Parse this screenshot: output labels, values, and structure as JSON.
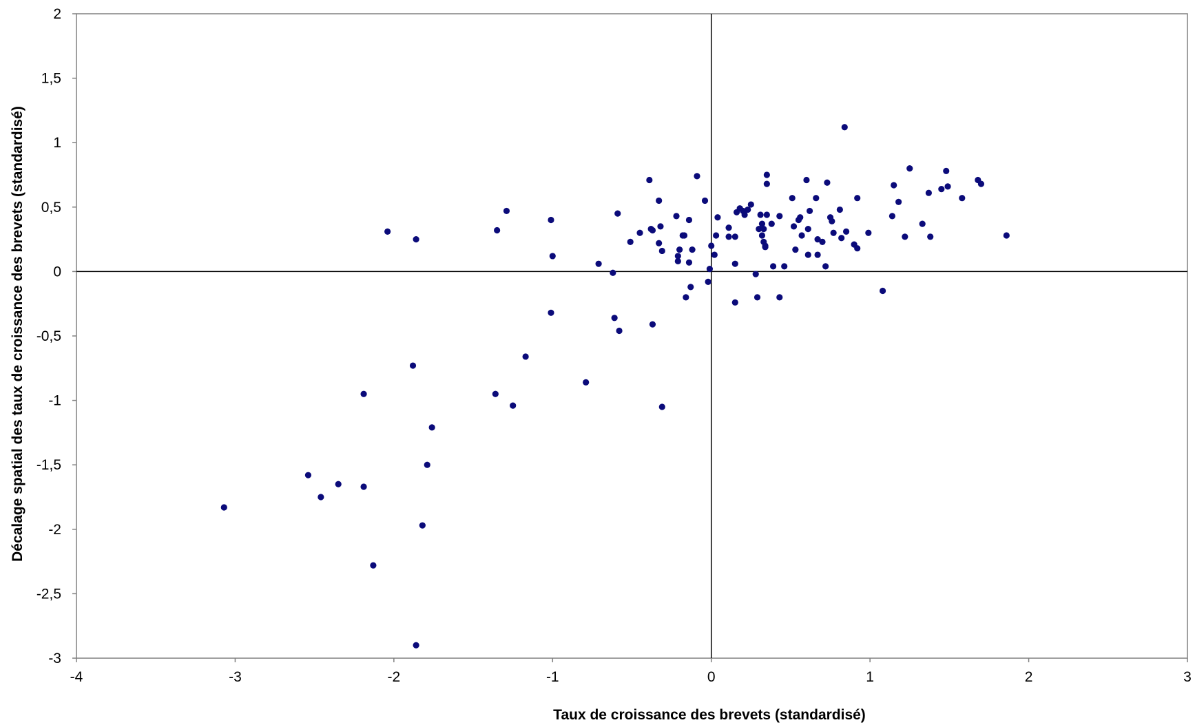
{
  "chart_data": {
    "type": "scatter",
    "title": "",
    "xlabel": "Taux de croissance  des brevets  (standardisé)",
    "ylabel": "Décalage spatial des taux de croissance  des brevets  (standardisé)",
    "xlim": [
      -4,
      3
    ],
    "ylim": [
      -3,
      2
    ],
    "xticks": [
      -4,
      -3,
      -2,
      -1,
      0,
      1,
      2,
      3
    ],
    "xtick_labels": [
      "-4",
      "-3",
      "-2",
      "-1",
      "0",
      "1",
      "2",
      "3"
    ],
    "yticks": [
      2,
      1.5,
      1,
      0.5,
      0,
      -0.5,
      -1,
      -1.5,
      -2,
      -2.5,
      -3
    ],
    "ytick_labels": [
      "2",
      "1,5",
      "1",
      "0,5",
      "0",
      "-0,5",
      "-1",
      "-1,5",
      "-2",
      "-2,5",
      "-3"
    ],
    "grid": false,
    "reference_lines": {
      "x": 0,
      "y": 0
    },
    "colors": {
      "points": "#0b0b7a",
      "axes": "#000000"
    },
    "points": [
      [
        -3.07,
        -1.83
      ],
      [
        -2.54,
        -1.58
      ],
      [
        -2.46,
        -1.75
      ],
      [
        -2.35,
        -1.65
      ],
      [
        -2.19,
        -0.95
      ],
      [
        -2.19,
        -1.67
      ],
      [
        -2.13,
        -2.28
      ],
      [
        -2.04,
        0.31
      ],
      [
        -1.88,
        -0.73
      ],
      [
        -1.86,
        0.25
      ],
      [
        -1.86,
        -2.9
      ],
      [
        -1.82,
        -1.97
      ],
      [
        -1.79,
        -1.5
      ],
      [
        -1.76,
        -1.21
      ],
      [
        -1.35,
        0.32
      ],
      [
        -1.36,
        -0.95
      ],
      [
        -1.29,
        0.47
      ],
      [
        -1.25,
        -1.04
      ],
      [
        -1.17,
        -0.66
      ],
      [
        -1.01,
        0.4
      ],
      [
        -1.01,
        -0.32
      ],
      [
        -1.0,
        0.12
      ],
      [
        -0.79,
        -0.86
      ],
      [
        -0.71,
        0.06
      ],
      [
        -0.62,
        -0.01
      ],
      [
        -0.61,
        -0.36
      ],
      [
        -0.59,
        0.45
      ],
      [
        -0.58,
        -0.46
      ],
      [
        -0.51,
        0.23
      ],
      [
        -0.45,
        0.3
      ],
      [
        -0.39,
        0.71
      ],
      [
        -0.38,
        0.33
      ],
      [
        -0.37,
        0.32
      ],
      [
        -0.37,
        -0.41
      ],
      [
        -0.33,
        0.55
      ],
      [
        -0.33,
        0.22
      ],
      [
        -0.32,
        0.35
      ],
      [
        -0.31,
        0.16
      ],
      [
        -0.31,
        -1.05
      ],
      [
        -0.22,
        0.43
      ],
      [
        -0.21,
        0.12
      ],
      [
        -0.21,
        0.08
      ],
      [
        -0.2,
        0.17
      ],
      [
        -0.18,
        0.28
      ],
      [
        -0.17,
        0.28
      ],
      [
        -0.16,
        -0.2
      ],
      [
        -0.14,
        0.07
      ],
      [
        -0.14,
        0.4
      ],
      [
        -0.13,
        -0.12
      ],
      [
        -0.12,
        0.17
      ],
      [
        -0.09,
        0.74
      ],
      [
        -0.04,
        0.55
      ],
      [
        -0.02,
        -0.08
      ],
      [
        -0.01,
        0.02
      ],
      [
        0.0,
        0.2
      ],
      [
        0.02,
        0.13
      ],
      [
        0.03,
        0.28
      ],
      [
        0.04,
        0.42
      ],
      [
        0.11,
        0.34
      ],
      [
        0.11,
        0.27
      ],
      [
        0.15,
        0.27
      ],
      [
        0.15,
        0.06
      ],
      [
        0.15,
        -0.24
      ],
      [
        0.16,
        0.46
      ],
      [
        0.18,
        0.49
      ],
      [
        0.2,
        0.47
      ],
      [
        0.21,
        0.44
      ],
      [
        0.23,
        0.48
      ],
      [
        0.25,
        0.52
      ],
      [
        0.28,
        -0.02
      ],
      [
        0.29,
        -0.2
      ],
      [
        0.3,
        0.33
      ],
      [
        0.31,
        0.44
      ],
      [
        0.32,
        0.28
      ],
      [
        0.32,
        0.37
      ],
      [
        0.33,
        0.23
      ],
      [
        0.33,
        0.33
      ],
      [
        0.34,
        0.19
      ],
      [
        0.34,
        0.2
      ],
      [
        0.35,
        0.44
      ],
      [
        0.35,
        0.75
      ],
      [
        0.35,
        0.68
      ],
      [
        0.38,
        0.37
      ],
      [
        0.39,
        0.04
      ],
      [
        0.43,
        0.43
      ],
      [
        0.43,
        -0.2
      ],
      [
        0.46,
        0.04
      ],
      [
        0.51,
        0.57
      ],
      [
        0.52,
        0.35
      ],
      [
        0.53,
        0.17
      ],
      [
        0.55,
        0.4
      ],
      [
        0.56,
        0.42
      ],
      [
        0.57,
        0.28
      ],
      [
        0.6,
        0.71
      ],
      [
        0.61,
        0.33
      ],
      [
        0.61,
        0.13
      ],
      [
        0.62,
        0.47
      ],
      [
        0.66,
        0.57
      ],
      [
        0.67,
        0.25
      ],
      [
        0.67,
        0.13
      ],
      [
        0.7,
        0.23
      ],
      [
        0.72,
        0.04
      ],
      [
        0.73,
        0.69
      ],
      [
        0.75,
        0.42
      ],
      [
        0.76,
        0.39
      ],
      [
        0.77,
        0.3
      ],
      [
        0.81,
        0.48
      ],
      [
        0.82,
        0.26
      ],
      [
        0.84,
        1.12
      ],
      [
        0.85,
        0.31
      ],
      [
        0.9,
        0.21
      ],
      [
        0.92,
        0.57
      ],
      [
        0.92,
        0.18
      ],
      [
        0.99,
        0.3
      ],
      [
        1.08,
        -0.15
      ],
      [
        1.14,
        0.43
      ],
      [
        1.15,
        0.67
      ],
      [
        1.18,
        0.54
      ],
      [
        1.22,
        0.27
      ],
      [
        1.25,
        0.8
      ],
      [
        1.33,
        0.37
      ],
      [
        1.37,
        0.61
      ],
      [
        1.38,
        0.27
      ],
      [
        1.45,
        0.64
      ],
      [
        1.48,
        0.78
      ],
      [
        1.49,
        0.66
      ],
      [
        1.58,
        0.57
      ],
      [
        1.68,
        0.71
      ],
      [
        1.7,
        0.68
      ],
      [
        1.86,
        0.28
      ]
    ]
  }
}
